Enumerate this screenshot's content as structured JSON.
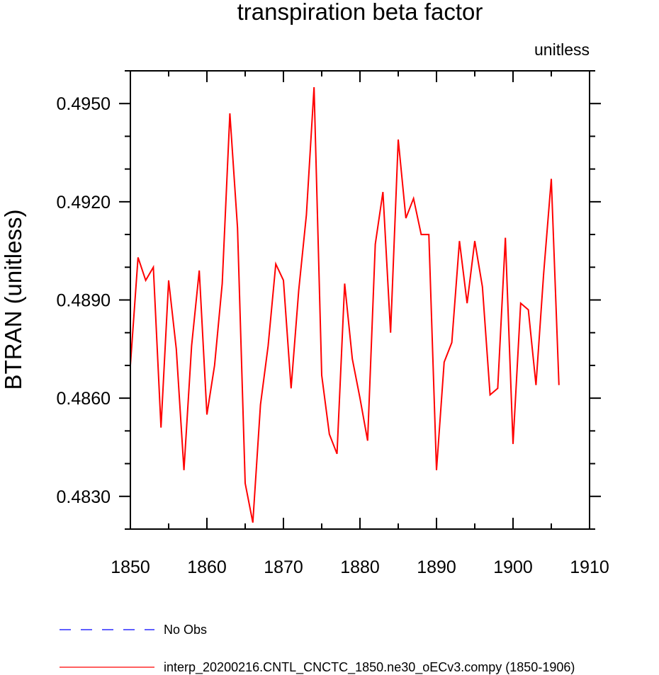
{
  "chart_data": {
    "type": "line",
    "title": "transpiration beta factor",
    "units_label": "unitless",
    "xlabel": "",
    "ylabel": "BTRAN  (unitless)",
    "xlim": [
      1850,
      1910
    ],
    "ylim": [
      0.482,
      0.496
    ],
    "x_ticks": [
      "1850",
      "1860",
      "1870",
      "1880",
      "1890",
      "1900",
      "1910"
    ],
    "y_ticks": [
      "0.4830",
      "0.4860",
      "0.4890",
      "0.4920",
      "0.4950"
    ],
    "grid": false,
    "legend_position": "bottom",
    "series": [
      {
        "name": "No Obs",
        "color": "#0000ff",
        "dash": "dashed",
        "x": [],
        "y": []
      },
      {
        "name": "interp_20200216.CNTL_CNCTC_1850.ne30_oECv3.compy (1850-1906)",
        "color": "#ff0000",
        "dash": "solid",
        "x": [
          1850,
          1851,
          1852,
          1853,
          1854,
          1855,
          1856,
          1857,
          1858,
          1859,
          1860,
          1861,
          1862,
          1863,
          1864,
          1865,
          1866,
          1867,
          1868,
          1869,
          1870,
          1871,
          1872,
          1873,
          1874,
          1875,
          1876,
          1877,
          1878,
          1879,
          1880,
          1881,
          1882,
          1883,
          1884,
          1885,
          1886,
          1887,
          1888,
          1889,
          1890,
          1891,
          1892,
          1893,
          1894,
          1895,
          1896,
          1897,
          1898,
          1899,
          1900,
          1901,
          1902,
          1903,
          1904,
          1905,
          1906
        ],
        "y": [
          0.487,
          0.4903,
          0.4896,
          0.49,
          0.4851,
          0.4896,
          0.4875,
          0.4838,
          0.4876,
          0.4899,
          0.4855,
          0.487,
          0.4895,
          0.4947,
          0.4912,
          0.4834,
          0.4822,
          0.4858,
          0.4876,
          0.4901,
          0.4896,
          0.4863,
          0.4893,
          0.4916,
          0.4955,
          0.4867,
          0.4849,
          0.4843,
          0.4895,
          0.4872,
          0.486,
          0.4847,
          0.4907,
          0.4923,
          0.488,
          0.4939,
          0.4915,
          0.4921,
          0.491,
          0.491,
          0.4838,
          0.4871,
          0.4877,
          0.4908,
          0.4889,
          0.4908,
          0.4894,
          0.4861,
          0.4863,
          0.4909,
          0.4846,
          0.4889,
          0.4887,
          0.4864,
          0.4898,
          0.4927,
          0.4864
        ]
      }
    ]
  }
}
